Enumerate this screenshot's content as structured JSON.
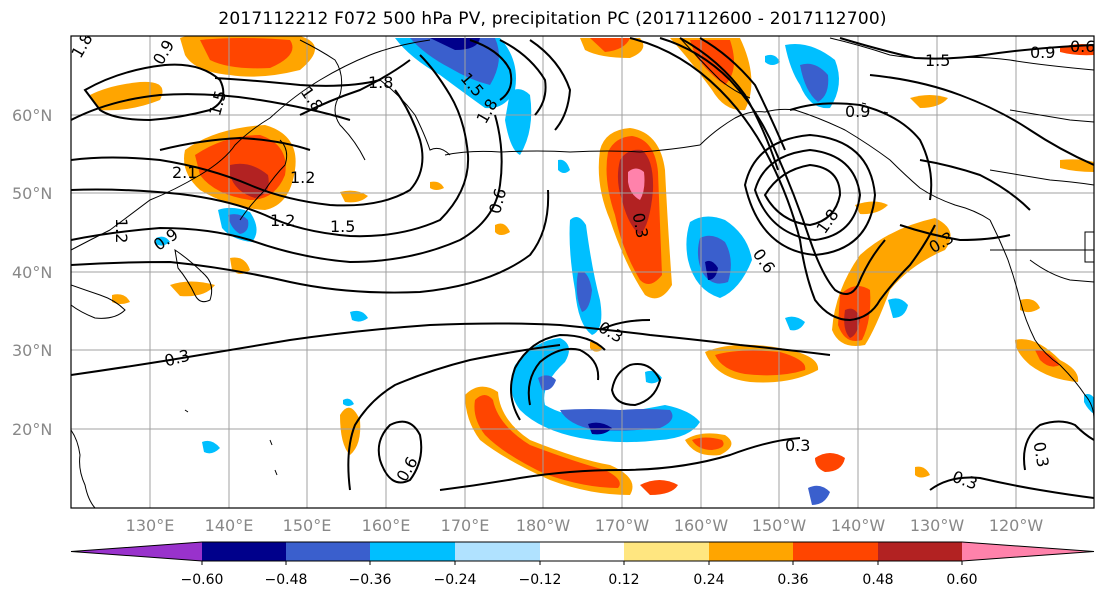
{
  "title": "2017112212 F072 500 hPa PV, precipitation PC (2017112600 - 2017112700)",
  "latitude_labels": [
    "60°N",
    "50°N",
    "40°N",
    "30°N",
    "20°N"
  ],
  "longitude_labels": [
    "130°E",
    "140°E",
    "150°E",
    "160°E",
    "170°E",
    "180°W",
    "170°W",
    "160°W",
    "150°W",
    "140°W",
    "130°W",
    "120°W"
  ],
  "colorbar": {
    "ticks": [
      "−0.60",
      "−0.48",
      "−0.36",
      "−0.24",
      "−0.12",
      "0.12",
      "0.24",
      "0.36",
      "0.48",
      "0.60"
    ],
    "colors": [
      "#9932cc",
      "#00008b",
      "#3a5fcd",
      "#00bfff",
      "#b0e2ff",
      "#ffffff",
      "#ffe680",
      "#ffa500",
      "#ff4500",
      "#b22222",
      "#ff82ab"
    ]
  },
  "contour_labels": [
    "1.8",
    "0.9",
    "1.5",
    "1.8",
    "1.8",
    "1.5",
    "1.8",
    "2.1",
    "1.2",
    "1.2",
    "1.5",
    "1.2",
    "0.9",
    "0.6",
    "0.3",
    "0.3",
    "0.9",
    "1.5",
    "0.6",
    "0.9",
    "1.8",
    "0.6",
    "0.3",
    "0.3",
    "0.6",
    "0.3",
    "0.3",
    "0.3"
  ]
}
